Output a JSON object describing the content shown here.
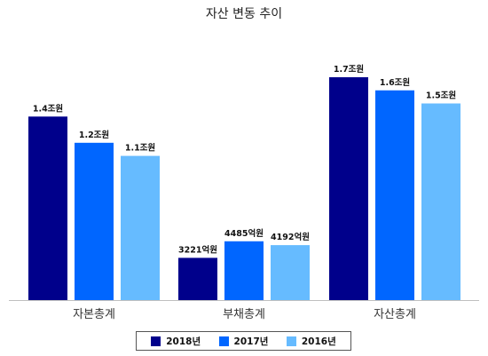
{
  "chart_data": {
    "type": "bar",
    "title": "자산 변동 추이",
    "xlabel": "",
    "ylabel": "",
    "categories": [
      "자본총계",
      "부채총계",
      "자산총계"
    ],
    "series": [
      {
        "name": "2018년",
        "color": "#00008b",
        "values": [
          1.4,
          0.3221,
          1.7
        ],
        "labels": [
          "1.4조원",
          "3221억원",
          "1.7조원"
        ]
      },
      {
        "name": "2017년",
        "color": "#0066ff",
        "values": [
          1.2,
          0.4485,
          1.6
        ],
        "labels": [
          "1.2조원",
          "4485억원",
          "1.6조원"
        ]
      },
      {
        "name": "2016년",
        "color": "#66bbff",
        "values": [
          1.1,
          0.4192,
          1.5
        ],
        "labels": [
          "1.1조원",
          "4192억원",
          "1.5조원"
        ]
      }
    ],
    "unit": "조원",
    "ylim": [
      0,
      1.7
    ],
    "grid": false,
    "legend_position": "bottom"
  }
}
